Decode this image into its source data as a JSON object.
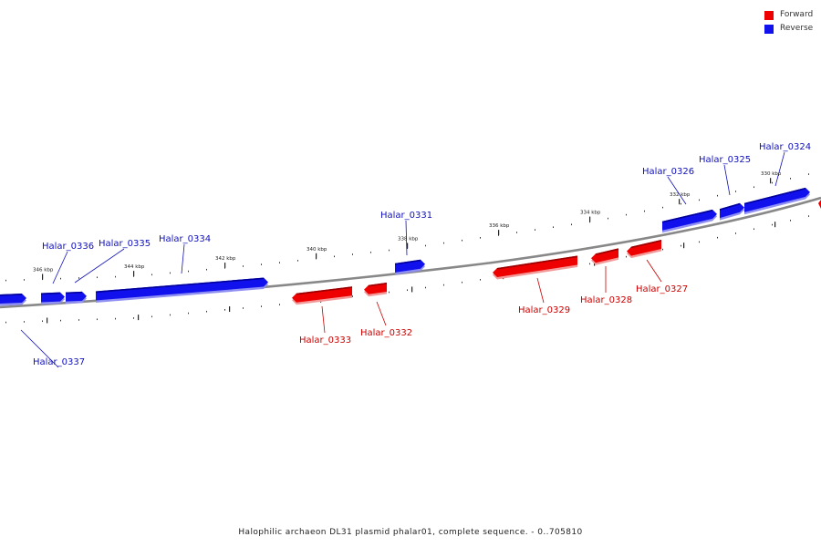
{
  "legend": {
    "items": [
      {
        "label": "Forward",
        "color": "#ee0000"
      },
      {
        "label": "Reverse",
        "color": "#1111ee"
      }
    ]
  },
  "caption": "Halophilic archaeon DL31 plasmid phalar01, complete sequence. - 0..705810",
  "scale_labels": [
    "346 kbp",
    "344 kbp",
    "342 kbp",
    "340 kbp",
    "338 kbp",
    "336 kbp",
    "334 kbp",
    "332 kbp",
    "330 kbp"
  ],
  "colors": {
    "forward": "#ee0000",
    "reverse": "#1111ee",
    "backbone": "#888888"
  },
  "genes": [
    {
      "name": "Halar_0324",
      "strand": "reverse"
    },
    {
      "name": "Halar_0325",
      "strand": "reverse"
    },
    {
      "name": "Halar_0326",
      "strand": "reverse"
    },
    {
      "name": "Halar_0327",
      "strand": "forward"
    },
    {
      "name": "Halar_0328",
      "strand": "forward"
    },
    {
      "name": "Halar_0329",
      "strand": "forward"
    },
    {
      "name": "Halar_0331",
      "strand": "reverse"
    },
    {
      "name": "Halar_0332",
      "strand": "forward"
    },
    {
      "name": "Halar_0333",
      "strand": "forward"
    },
    {
      "name": "Halar_0334",
      "strand": "reverse"
    },
    {
      "name": "Halar_0335",
      "strand": "reverse"
    },
    {
      "name": "Halar_0336",
      "strand": "reverse"
    },
    {
      "name": "Halar_0337",
      "strand": "reverse"
    }
  ]
}
